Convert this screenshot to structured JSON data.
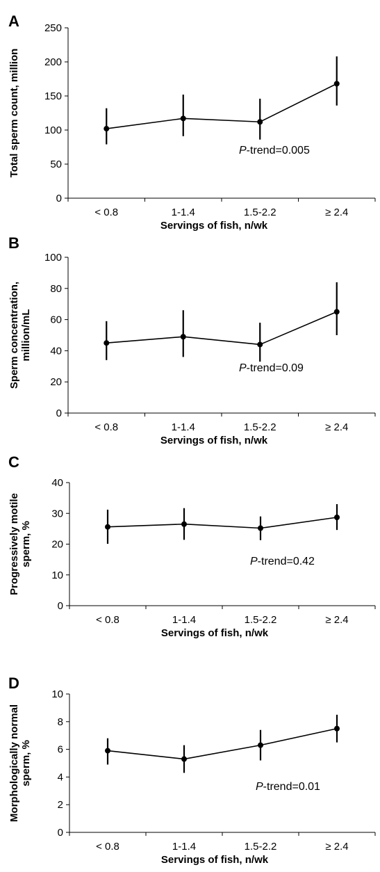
{
  "chart_data": [
    {
      "panel": "A",
      "type": "line",
      "categories": [
        "< 0.8",
        "1-1.4",
        "1.5-2.2",
        "≥ 2.4"
      ],
      "values": [
        102,
        117,
        112,
        168
      ],
      "error_low": [
        79,
        91,
        86,
        136
      ],
      "error_high": [
        132,
        152,
        146,
        208
      ],
      "ylabel": [
        "Total sperm count, million"
      ],
      "xlabel": "Servings of fish, n/wk",
      "ylim": [
        0,
        250
      ],
      "yticks": [
        0,
        50,
        100,
        150,
        200,
        250
      ],
      "annotation_italic": "P",
      "annotation_rest": "-trend=0.005"
    },
    {
      "panel": "B",
      "type": "line",
      "categories": [
        "< 0.8",
        "1-1.4",
        "1.5-2.2",
        "≥ 2.4"
      ],
      "values": [
        45,
        49,
        44,
        65
      ],
      "error_low": [
        34,
        36,
        33,
        50
      ],
      "error_high": [
        59,
        66,
        58,
        84
      ],
      "ylabel": [
        "Sperm concentration,",
        "million/mL"
      ],
      "xlabel": "Servings of fish, n/wk",
      "ylim": [
        0,
        100
      ],
      "yticks": [
        0,
        20,
        40,
        60,
        80,
        100
      ],
      "annotation_italic": "P",
      "annotation_rest": "-trend=0.09"
    },
    {
      "panel": "C",
      "type": "line",
      "categories": [
        "< 0.8",
        "1-1.4",
        "1.5-2.2",
        "≥ 2.4"
      ],
      "values": [
        25.6,
        26.5,
        25.2,
        28.7
      ],
      "error_low": [
        20.1,
        21.4,
        21.3,
        24.6
      ],
      "error_high": [
        31.2,
        31.7,
        29.0,
        33.0
      ],
      "ylabel": [
        "Progressively motile",
        "sperm, %"
      ],
      "xlabel": "Servings of fish, n/wk",
      "ylim": [
        0,
        40
      ],
      "yticks": [
        0,
        10,
        20,
        30,
        40
      ],
      "annotation_italic": "P",
      "annotation_rest": "-trend=0.42"
    },
    {
      "panel": "D",
      "type": "line",
      "categories": [
        "< 0.8",
        "1-1.4",
        "1.5-2.2",
        "≥ 2.4"
      ],
      "values": [
        5.9,
        5.3,
        6.3,
        7.5
      ],
      "error_low": [
        4.9,
        4.3,
        5.2,
        6.5
      ],
      "error_high": [
        6.8,
        6.3,
        7.4,
        8.5
      ],
      "ylabel": [
        "Morphologically normal",
        "sperm, %"
      ],
      "xlabel": "Servings of fish, n/wk",
      "ylim": [
        0,
        10
      ],
      "yticks": [
        0,
        2,
        4,
        6,
        8,
        10
      ],
      "annotation_italic": "P",
      "annotation_rest": "-trend=0.01"
    }
  ]
}
